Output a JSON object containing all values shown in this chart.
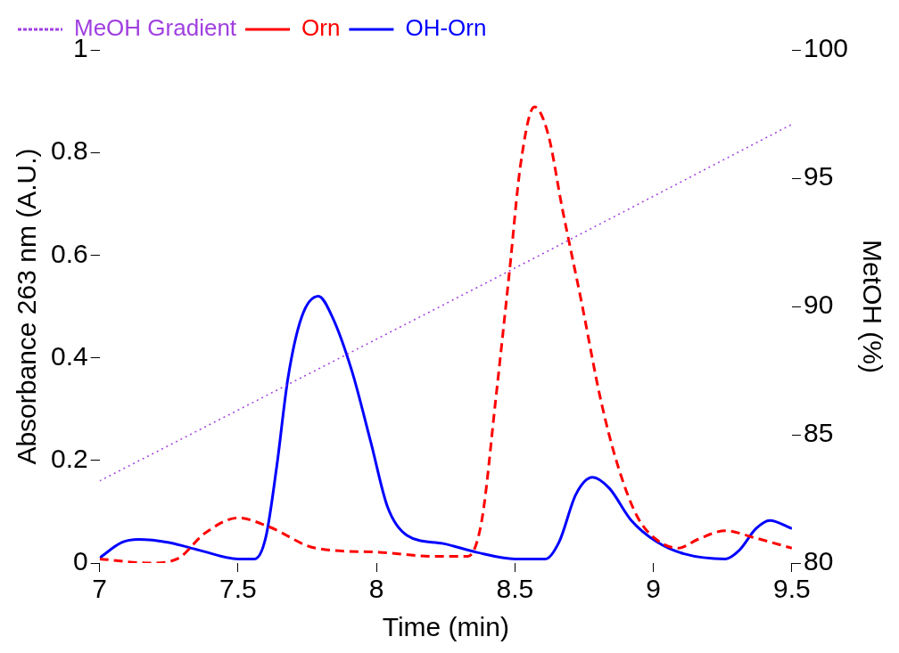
{
  "chart_data": {
    "type": "line",
    "xlabel": "Time (min)",
    "ylabel": "Absorbance 263 nm (A.U.)",
    "y2label": "MetOH (%)",
    "xlim": [
      7,
      9.5
    ],
    "xticks": [
      7,
      7.5,
      8,
      8.5,
      9,
      9.5
    ],
    "ylim": [
      0,
      1
    ],
    "yticks": [
      0,
      0.2,
      0.4,
      0.6,
      0.8,
      1
    ],
    "y2lim": [
      80,
      100
    ],
    "y2ticks": [
      80,
      85,
      90,
      95,
      100
    ],
    "grid": false,
    "legend": "top left",
    "marker": "none",
    "series": [
      {
        "name": "MeOH Gradient",
        "color": "#a040e0",
        "axis": "y2",
        "line_style": "dotted",
        "x": [
          7,
          8.5,
          9.5
        ],
        "values": [
          83.2,
          91.5,
          97.1
        ]
      },
      {
        "name": "Orn",
        "color": "#ff0000",
        "line_style": "dashed",
        "x": [
          7,
          7.18,
          7.28,
          7.38,
          7.5,
          7.61,
          7.78,
          8.01,
          8.21,
          8.33,
          8.38,
          8.43,
          8.48,
          8.52,
          8.57,
          8.62,
          8.67,
          8.74,
          8.81,
          8.87,
          8.94,
          9.01,
          9.09,
          9.16,
          9.26,
          9.36,
          9.5
        ],
        "values": [
          0.008,
          0,
          0.008,
          0.058,
          0.088,
          0.071,
          0.029,
          0.021,
          0.013,
          0.013,
          0.083,
          0.317,
          0.568,
          0.776,
          0.889,
          0.835,
          0.693,
          0.509,
          0.317,
          0.192,
          0.092,
          0.046,
          0.029,
          0.046,
          0.063,
          0.05,
          0.029
        ]
      },
      {
        "name": "OH-Orn",
        "color": "#0000ff",
        "line_style": "solid",
        "x": [
          7,
          7.08,
          7.14,
          7.25,
          7.36,
          7.5,
          7.56,
          7.6,
          7.64,
          7.68,
          7.73,
          7.79,
          7.84,
          7.91,
          7.98,
          8.04,
          8.11,
          8.24,
          8.36,
          8.5,
          8.61,
          8.66,
          8.72,
          8.78,
          8.84,
          8.92,
          9.01,
          9.11,
          9.26,
          9.31,
          9.37,
          9.42,
          9.5
        ],
        "values": [
          0.01,
          0.04,
          0.046,
          0.04,
          0.025,
          0.008,
          0.008,
          0.05,
          0.19,
          0.36,
          0.48,
          0.52,
          0.48,
          0.376,
          0.234,
          0.109,
          0.054,
          0.038,
          0.021,
          0.008,
          0.008,
          0.042,
          0.134,
          0.167,
          0.146,
          0.083,
          0.042,
          0.018,
          0.008,
          0.025,
          0.067,
          0.083,
          0.067
        ]
      }
    ]
  }
}
